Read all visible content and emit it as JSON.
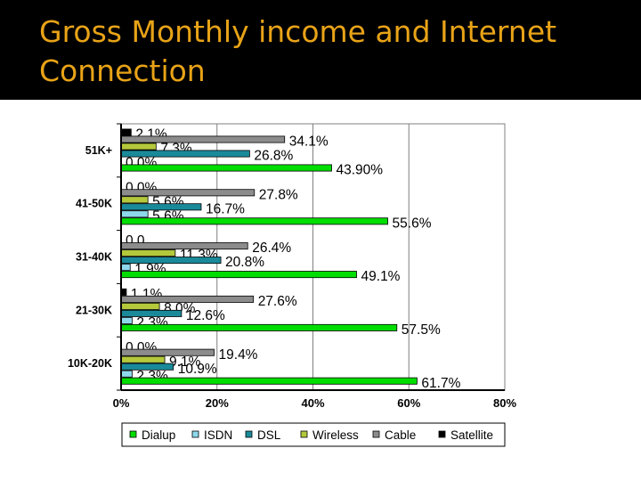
{
  "slide": {
    "title": "Gross Monthly income and Internet Connection"
  },
  "colors": {
    "title_text": "#e8a317",
    "title_background": "#000000"
  },
  "chart_data": {
    "type": "bar",
    "orientation": "horizontal",
    "title": "",
    "xlabel": "",
    "ylabel": "",
    "xlim": [
      0,
      80
    ],
    "x_ticks": [
      "0%",
      "20%",
      "40%",
      "60%",
      "80%"
    ],
    "grid": true,
    "legend_position": "bottom",
    "categories": [
      "51K+",
      "41-50K",
      "31-40K",
      "21-30K",
      "10K-20K"
    ],
    "series": [
      {
        "name": "Dialup",
        "color": "#00dd00",
        "values": [
          43.9,
          55.6,
          49.1,
          57.5,
          61.7
        ],
        "labels": [
          "43.90%",
          "55.6%",
          "49.1%",
          "57.5%",
          "61.7%"
        ]
      },
      {
        "name": "ISDN",
        "color": "#8ed8ec",
        "values": [
          0.0,
          5.6,
          1.9,
          2.3,
          2.3
        ],
        "labels": [
          "0.0%",
          "5.6%",
          "1.9%",
          "2.3%",
          "2.3%"
        ]
      },
      {
        "name": "DSL",
        "color": "#1a8a9a",
        "values": [
          26.8,
          16.7,
          20.8,
          12.6,
          10.9
        ],
        "labels": [
          "26.8%",
          "16.7%",
          "20.8%",
          "12.6%",
          "10.9%"
        ]
      },
      {
        "name": "Wireless",
        "color": "#b4c83c",
        "values": [
          7.3,
          5.6,
          11.3,
          8.0,
          9.1
        ],
        "labels": [
          "7.3%",
          "5.6%",
          "11.3%",
          "8.0%",
          "9.1%"
        ]
      },
      {
        "name": "Cable",
        "color": "#8c8c8c",
        "values": [
          34.1,
          27.8,
          26.4,
          27.6,
          19.4
        ],
        "labels": [
          "34.1%",
          "27.8%",
          "26.4%",
          "27.6%",
          "19.4%"
        ]
      },
      {
        "name": "Satellite",
        "color": "#000000",
        "values": [
          2.1,
          0.0,
          0.0,
          1.1,
          0.0
        ],
        "labels": [
          "2.1%",
          "0.0%",
          "0.0",
          "1.1%",
          "0.0%"
        ]
      }
    ]
  }
}
